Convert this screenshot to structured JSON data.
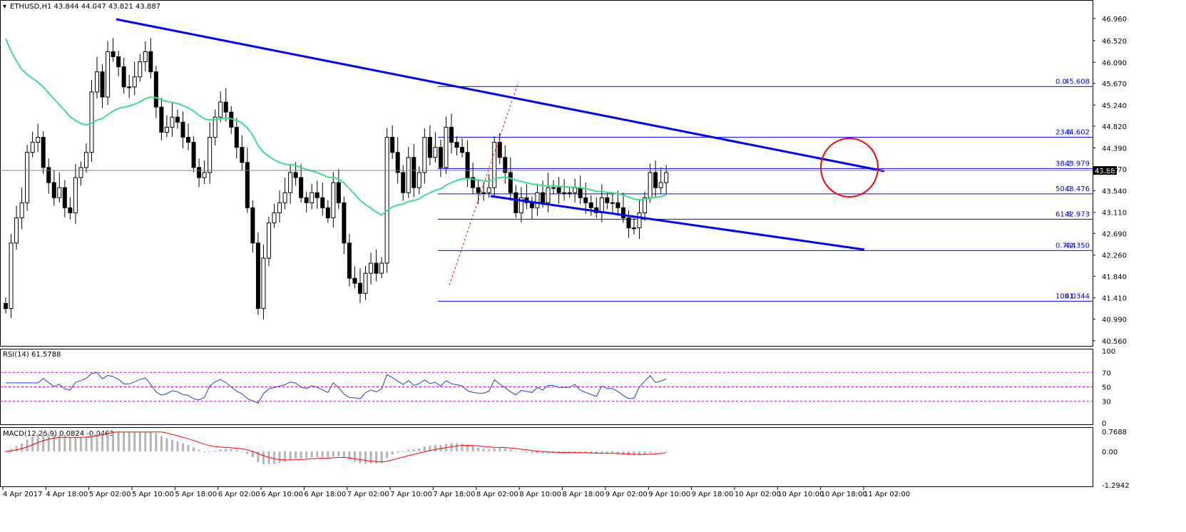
{
  "main_title": "ETHUSD,H1 43.844 44.047 43.821 43.887",
  "rsi_title": "RSI(14) 61.5788",
  "macd_title": "MACD(12,26,9) 0.0824 -0.0463",
  "current_price": "43.887",
  "colors": {
    "trendline": "#0000ff",
    "ma": "#3cde8c",
    "fib": "#0000ff",
    "circle": "#ff0000",
    "rsi": "#1f3cdc",
    "macd_signal": "#ff0000",
    "macd_hist": "#b4b4b4",
    "candle": "#000000"
  },
  "chart_data": [
    {
      "type": "candlestick",
      "name": "ETHUSD H1",
      "y_ticks": [
        "46.960",
        "46.520",
        "46.090",
        "45.670",
        "45.240",
        "44.820",
        "44.390",
        "43.970",
        "43.540",
        "43.110",
        "42.690",
        "42.260",
        "41.840",
        "41.410",
        "40.990",
        "40.560"
      ],
      "ylim": [
        40.5,
        47.1
      ],
      "x_ticks": [
        "4 Apr 2017",
        "4 Apr 18:00",
        "5 Apr 02:00",
        "5 Apr 10:00",
        "5 Apr 18:00",
        "6 Apr 02:00",
        "6 Apr 10:00",
        "6 Apr 18:00",
        "7 Apr 02:00",
        "7 Apr 10:00",
        "7 Apr 18:00",
        "8 Apr 02:00",
        "8 Apr 10:00",
        "8 Apr 18:00",
        "9 Apr 02:00",
        "9 Apr 10:00",
        "9 Apr 18:00",
        "10 Apr 02:00",
        "10 Apr 10:00",
        "10 Apr 18:00",
        "11 Apr 02:00"
      ],
      "close": [
        41.2,
        42.5,
        43.0,
        43.3,
        44.3,
        44.5,
        44.6,
        44.0,
        43.7,
        43.4,
        43.6,
        43.2,
        43.1,
        43.8,
        44.0,
        44.3,
        45.5,
        45.9,
        45.4,
        46.3,
        46.2,
        46.0,
        45.6,
        45.6,
        45.8,
        46.1,
        46.3,
        45.9,
        45.2,
        44.7,
        44.8,
        45.0,
        44.9,
        44.6,
        44.5,
        44.0,
        43.8,
        43.9,
        44.6,
        45.0,
        45.3,
        45.1,
        44.8,
        44.4,
        44.1,
        43.2,
        42.5,
        41.2,
        42.2,
        42.9,
        43.1,
        43.3,
        43.5,
        43.9,
        43.8,
        43.4,
        43.3,
        43.5,
        43.4,
        43.2,
        43.0,
        43.7,
        43.3,
        42.5,
        41.8,
        41.7,
        41.5,
        41.9,
        42.1,
        41.9,
        42.1,
        44.6,
        44.3,
        43.9,
        43.5,
        44.2,
        43.6,
        43.9,
        44.6,
        44.2,
        44.4,
        44.0,
        44.8,
        44.5,
        44.4,
        44.3,
        43.8,
        43.6,
        43.5,
        43.5,
        43.6,
        44.5,
        44.2,
        43.9,
        43.5,
        43.1,
        43.4,
        43.3,
        43.2,
        43.5,
        43.3,
        43.6,
        43.6,
        43.5,
        43.5,
        43.5,
        43.6,
        43.4,
        43.3,
        43.2,
        43.1,
        43.4,
        43.3,
        43.3,
        43.2,
        43.0,
        42.8,
        42.8,
        43.1,
        43.4,
        43.9,
        43.6,
        43.7,
        43.9
      ],
      "fib_levels": [
        {
          "label": "0.0",
          "value": "45.608",
          "level": 45.608
        },
        {
          "label": "23.6",
          "value": "44.602",
          "level": 44.602
        },
        {
          "label": "38.2",
          "value": "43.979",
          "level": 43.979
        },
        {
          "label": "50.0",
          "value": "43.476",
          "level": 43.476
        },
        {
          "label": "61.8",
          "value": "42.973",
          "level": 42.973
        },
        {
          "label": "0.764",
          "value": "42.350",
          "level": 42.35
        },
        {
          "label": "100.0",
          "value": "41.344",
          "level": 41.344
        }
      ]
    },
    {
      "type": "line",
      "name": "RSI(14)",
      "y_ticks": [
        "100",
        "70",
        "50",
        "30",
        "0"
      ],
      "ylim": [
        0,
        100
      ],
      "levels": [
        70,
        50,
        30
      ]
    },
    {
      "type": "bar",
      "name": "MACD(12,26,9)",
      "y_ticks": [
        "0.7688",
        "0.00",
        "-1.2942"
      ],
      "ylim": [
        -1.2942,
        0.7688
      ]
    }
  ]
}
